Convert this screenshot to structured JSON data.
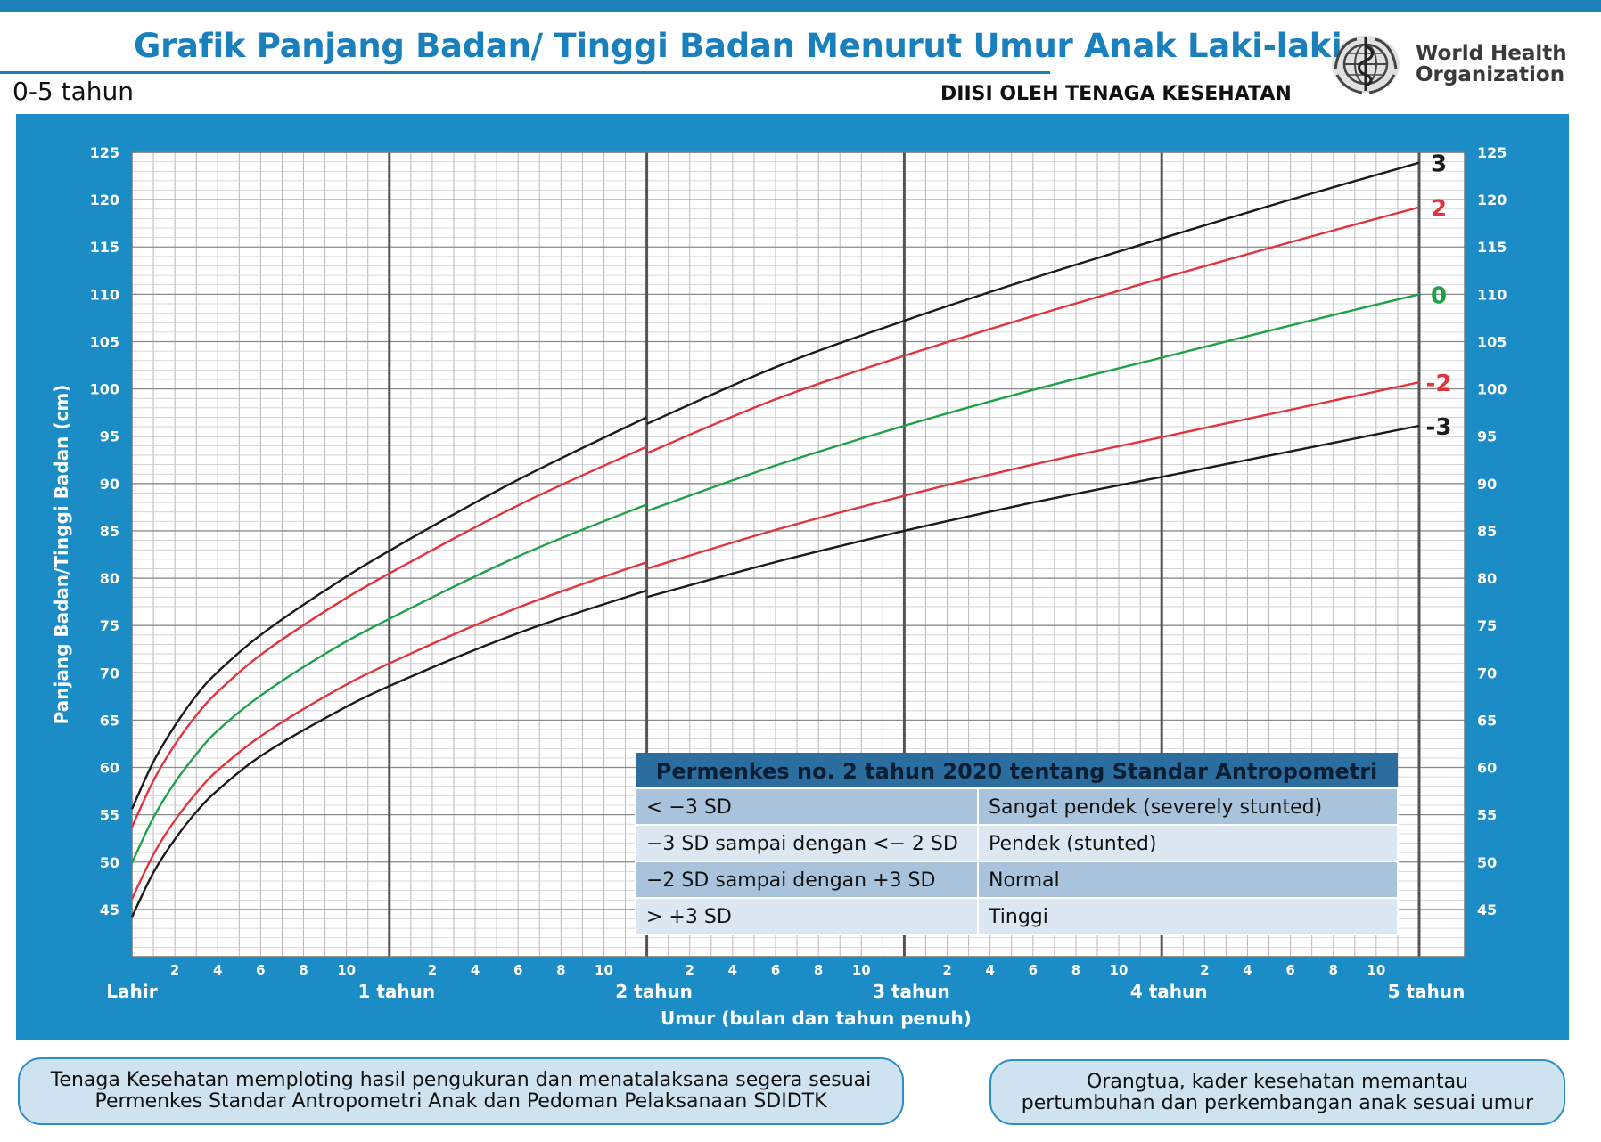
{
  "header": {
    "title": "Grafik Panjang Badan/ Tinggi Badan Menurut Umur Anak Laki-laki",
    "subtitle": "0-5 tahun",
    "filled_by": "DIISI OLEH TENAGA KESEHATAN",
    "org_name_line1": "World Health",
    "org_name_line2": "Organization",
    "logo_icon": "who-emblem-icon"
  },
  "colors": {
    "brand_blue": "#1b8cc6",
    "title_blue": "#1a80bd",
    "sd3": "#1b1b1b",
    "sd2": "#e2343f",
    "sd0": "#21a04a",
    "table_header": "#2c6d9f"
  },
  "chart_data": {
    "type": "line",
    "title": "Grafik Panjang Badan/ Tinggi Badan Menurut Umur Anak Laki-laki",
    "ylabel": "Panjang  Badan/Tinggi Badan (cm)",
    "xlabel": "Umur (bulan dan tahun penuh)",
    "ylim": [
      40,
      125
    ],
    "xlim": [
      0,
      60
    ],
    "y_ticks": [
      45,
      50,
      55,
      60,
      65,
      70,
      75,
      80,
      85,
      90,
      95,
      100,
      105,
      110,
      115,
      120,
      125
    ],
    "x_month_ticks": [
      "2",
      "4",
      "6",
      "8",
      "10"
    ],
    "x_year_labels": [
      "Lahir",
      "1 tahun",
      "2 tahun",
      "3 tahun",
      "4 tahun",
      "5 tahun"
    ],
    "grid": true,
    "x": [
      0,
      1,
      2,
      3,
      4,
      6,
      9,
      12,
      18,
      24,
      30,
      36,
      42,
      48,
      54,
      60
    ],
    "series": [
      {
        "name": "3",
        "color": "#1b1b1b",
        "values": [
          55.6,
          60.6,
          64.4,
          67.6,
          70.1,
          74.0,
          78.7,
          82.9,
          90.4,
          97.0,
          102.3,
          107.2,
          111.7,
          115.9,
          120.0,
          123.9
        ]
      },
      {
        "name": "2",
        "color": "#e2343f",
        "values": [
          53.7,
          58.6,
          62.4,
          65.5,
          68.0,
          71.9,
          76.5,
          80.5,
          87.7,
          93.9,
          98.9,
          103.5,
          107.7,
          111.7,
          115.5,
          119.2
        ]
      },
      {
        "name": "0",
        "color": "#21a04a",
        "values": [
          49.9,
          54.7,
          58.4,
          61.4,
          63.9,
          67.6,
          72.0,
          75.7,
          82.3,
          87.8,
          91.9,
          96.1,
          99.9,
          103.3,
          106.7,
          110.0
        ]
      },
      {
        "name": "-2",
        "color": "#e2343f",
        "values": [
          46.1,
          50.8,
          54.4,
          57.3,
          59.7,
          63.3,
          67.5,
          71.0,
          76.9,
          81.7,
          85.1,
          88.7,
          92.0,
          94.9,
          97.8,
          100.7
        ]
      },
      {
        "name": "-3",
        "color": "#1b1b1b",
        "values": [
          44.2,
          48.9,
          52.4,
          55.3,
          57.6,
          61.2,
          65.2,
          68.6,
          74.2,
          78.7,
          81.7,
          85.0,
          88.0,
          90.7,
          93.4,
          96.1
        ]
      }
    ],
    "length_to_height_shift": [
      {
        "name": "3",
        "at_24_before": 97.0,
        "at_24_after": 96.3
      },
      {
        "name": "2",
        "at_24_before": 93.9,
        "at_24_after": 93.2
      },
      {
        "name": "0",
        "at_24_before": 87.8,
        "at_24_after": 87.1
      },
      {
        "name": "-2",
        "at_24_before": 81.7,
        "at_24_after": 81.0
      },
      {
        "name": "-3",
        "at_24_before": 78.7,
        "at_24_after": 78.0
      }
    ]
  },
  "classification_table": {
    "title": "Permenkes no. 2 tahun 2020 tentang Standar Antropometri",
    "rows": [
      {
        "range": "< −3 SD",
        "status": "Sangat pendek (severely stunted)"
      },
      {
        "range": "−3 SD sampai dengan <− 2 SD",
        "status": "Pendek (stunted)"
      },
      {
        "range": "−2 SD sampai dengan +3 SD",
        "status": "Normal"
      },
      {
        "range": "> +3 SD",
        "status": "Tinggi"
      }
    ]
  },
  "footer": {
    "left_line1": "Tenaga Kesehatan memploting hasil pengukuran dan menatalaksana segera sesuai",
    "left_line2": "Permenkes Standar Antropometri Anak dan Pedoman Pelaksanaan SDIDTK",
    "right_line1": "Orangtua, kader kesehatan memantau",
    "right_line2": "pertumbuhan dan perkembangan anak sesuai umur"
  }
}
